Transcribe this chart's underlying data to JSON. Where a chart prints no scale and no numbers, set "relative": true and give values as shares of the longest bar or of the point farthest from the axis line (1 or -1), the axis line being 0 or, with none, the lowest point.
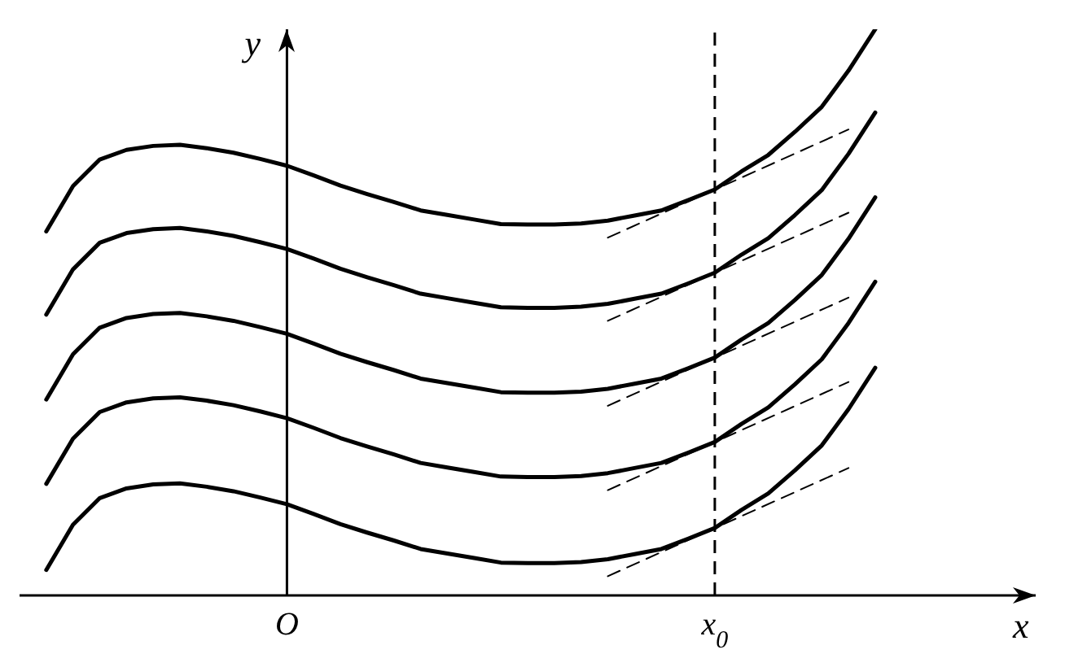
{
  "chart_data": {
    "type": "line",
    "relative": true,
    "xlabel": "x",
    "ylabel": "y",
    "legend": false,
    "grid": false,
    "marker": "none",
    "line_style": "solid",
    "categories": [
      null,
      null,
      null,
      null,
      null,
      null,
      null,
      null,
      null,
      null,
      "O",
      null,
      null,
      null,
      null,
      null,
      null,
      null,
      null,
      null,
      null,
      null,
      null,
      null,
      null,
      null,
      "x$_{0}$",
      null,
      null,
      null,
      null,
      null,
      null,
      null,
      null,
      null,
      null,
      null,
      null
    ],
    "series": [
      {
        "color": "#000000",
        "values": [
          null,
          0.643,
          0.723,
          0.77,
          0.787,
          0.794,
          0.796,
          0.79,
          0.782,
          0.771,
          0.759,
          0.742,
          0.724,
          0.709,
          0.695,
          0.68,
          0.672,
          0.664,
          0.656,
          0.655,
          0.655,
          0.657,
          0.662,
          0.671,
          0.68,
          0.698,
          0.717,
          0.749,
          0.778,
          0.819,
          0.863,
          0.927,
          1.0,
          null,
          null,
          null,
          null,
          null,
          null
        ]
      },
      {
        "color": "#000000",
        "values": [
          null,
          0.496,
          0.576,
          0.623,
          0.64,
          0.647,
          0.649,
          0.643,
          0.635,
          0.624,
          0.612,
          0.595,
          0.577,
          0.562,
          0.548,
          0.533,
          0.525,
          0.517,
          0.509,
          0.508,
          0.508,
          0.51,
          0.515,
          0.524,
          0.533,
          0.551,
          0.57,
          0.602,
          0.631,
          0.672,
          0.716,
          0.78,
          0.853,
          null,
          null,
          null,
          null,
          null,
          null
        ]
      },
      {
        "color": "#000000",
        "values": [
          null,
          0.346,
          0.426,
          0.473,
          0.49,
          0.497,
          0.499,
          0.493,
          0.485,
          0.474,
          0.462,
          0.445,
          0.427,
          0.412,
          0.398,
          0.383,
          0.375,
          0.367,
          0.359,
          0.358,
          0.358,
          0.36,
          0.365,
          0.374,
          0.383,
          0.401,
          0.42,
          0.452,
          0.481,
          0.522,
          0.566,
          0.63,
          0.703,
          null,
          null,
          null,
          null,
          null,
          null
        ]
      },
      {
        "color": "#000000",
        "values": [
          null,
          0.197,
          0.277,
          0.324,
          0.341,
          0.348,
          0.35,
          0.344,
          0.336,
          0.325,
          0.313,
          0.296,
          0.278,
          0.263,
          0.249,
          0.234,
          0.226,
          0.218,
          0.21,
          0.209,
          0.209,
          0.211,
          0.216,
          0.225,
          0.234,
          0.252,
          0.271,
          0.303,
          0.332,
          0.373,
          0.417,
          0.481,
          0.554,
          null,
          null,
          null,
          null,
          null,
          null
        ]
      },
      {
        "color": "#000000",
        "values": [
          null,
          0.045,
          0.125,
          0.172,
          0.189,
          0.196,
          0.198,
          0.192,
          0.184,
          0.173,
          0.161,
          0.144,
          0.126,
          0.111,
          0.097,
          0.082,
          0.074,
          0.066,
          0.058,
          0.057,
          0.057,
          0.059,
          0.064,
          0.073,
          0.082,
          0.1,
          0.119,
          0.151,
          0.18,
          0.221,
          0.265,
          0.329,
          0.402,
          null,
          null,
          null,
          null,
          null,
          null
        ]
      },
      {
        "color": "#000000",
        "line_style": "dashed",
        "values": [
          null,
          null,
          null,
          null,
          null,
          null,
          null,
          null,
          null,
          null,
          null,
          null,
          null,
          null,
          null,
          null,
          null,
          null,
          null,
          null,
          null,
          null,
          0.632,
          null,
          null,
          null,
          null,
          null,
          null,
          null,
          null,
          0.823,
          null,
          null,
          null,
          null,
          null,
          null,
          null
        ]
      },
      {
        "color": "#000000",
        "line_style": "dashed",
        "values": [
          null,
          null,
          null,
          null,
          null,
          null,
          null,
          null,
          null,
          null,
          null,
          null,
          null,
          null,
          null,
          null,
          null,
          null,
          null,
          null,
          null,
          null,
          0.485,
          null,
          null,
          null,
          null,
          null,
          null,
          null,
          null,
          0.676,
          null,
          null,
          null,
          null,
          null,
          null,
          null
        ]
      },
      {
        "color": "#000000",
        "line_style": "dashed",
        "values": [
          null,
          null,
          null,
          null,
          null,
          null,
          null,
          null,
          null,
          null,
          null,
          null,
          null,
          null,
          null,
          null,
          null,
          null,
          null,
          null,
          null,
          null,
          0.335,
          null,
          null,
          null,
          null,
          null,
          null,
          null,
          null,
          0.526,
          null,
          null,
          null,
          null,
          null,
          null,
          null
        ]
      },
      {
        "color": "#000000",
        "line_style": "dashed",
        "values": [
          null,
          null,
          null,
          null,
          null,
          null,
          null,
          null,
          null,
          null,
          null,
          null,
          null,
          null,
          null,
          null,
          null,
          null,
          null,
          null,
          null,
          null,
          0.186,
          null,
          null,
          null,
          null,
          null,
          null,
          null,
          null,
          0.377,
          null,
          null,
          null,
          null,
          null,
          null,
          null
        ]
      },
      {
        "color": "#000000",
        "line_style": "dashed",
        "values": [
          null,
          null,
          null,
          null,
          null,
          null,
          null,
          null,
          null,
          null,
          null,
          null,
          null,
          null,
          null,
          null,
          null,
          null,
          null,
          null,
          null,
          null,
          0.034,
          null,
          null,
          null,
          null,
          null,
          null,
          null,
          null,
          0.225,
          null,
          null,
          null,
          null,
          null,
          null,
          null
        ]
      }
    ],
    "ref_lines": [
      {
        "axis": "x",
        "value": "O",
        "color": "#000000"
      },
      {
        "axis": "x",
        "value": "x$_{0}$",
        "color": "#000000",
        "line_style": "dashed"
      }
    ]
  }
}
